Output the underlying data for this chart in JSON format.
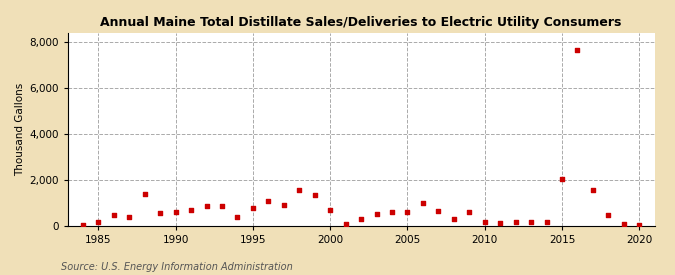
{
  "title": "Annual Maine Total Distillate Sales/Deliveries to Electric Utility Consumers",
  "ylabel": "Thousand Gallons",
  "source": "Source: U.S. Energy Information Administration",
  "fig_background_color": "#f0e0b8",
  "plot_background_color": "#ffffff",
  "marker_color": "#cc0000",
  "xlim": [
    1983,
    2021
  ],
  "ylim": [
    0,
    8400
  ],
  "yticks": [
    0,
    2000,
    4000,
    6000,
    8000
  ],
  "ytick_labels": [
    "0",
    "2,000",
    "4,000",
    "6,000",
    "8,000"
  ],
  "xticks": [
    1985,
    1990,
    1995,
    2000,
    2005,
    2010,
    2015,
    2020
  ],
  "years": [
    1984,
    1985,
    1986,
    1987,
    1988,
    1989,
    1990,
    1991,
    1992,
    1993,
    1994,
    1995,
    1996,
    1997,
    1998,
    1999,
    2000,
    2001,
    2002,
    2003,
    2004,
    2005,
    2006,
    2007,
    2008,
    2009,
    2010,
    2011,
    2012,
    2013,
    2014,
    2015,
    2016,
    2017,
    2018,
    2019,
    2020
  ],
  "values": [
    20,
    170,
    470,
    350,
    1380,
    550,
    570,
    680,
    870,
    830,
    350,
    750,
    1080,
    900,
    1530,
    1350,
    680,
    50,
    300,
    500,
    600,
    580,
    1000,
    650,
    270,
    600,
    150,
    120,
    170,
    140,
    150,
    2050,
    7680,
    1570,
    460,
    80,
    30
  ]
}
